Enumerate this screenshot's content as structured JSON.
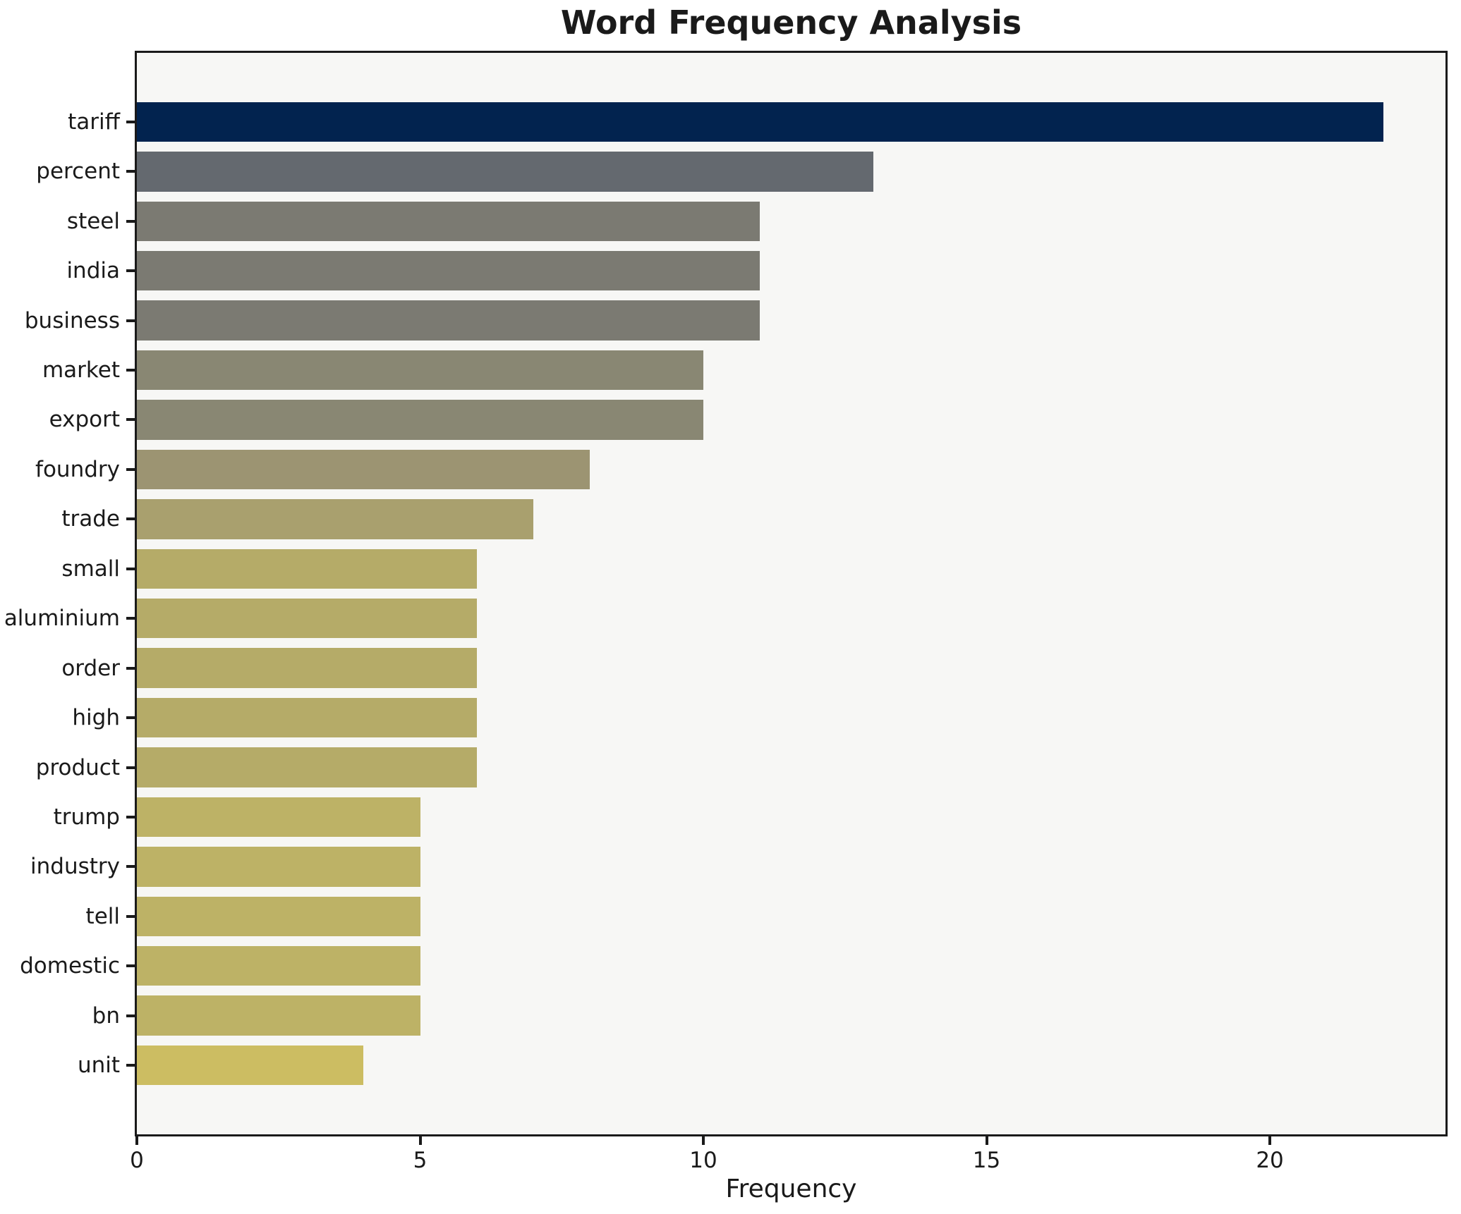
{
  "title": "Word Frequency Analysis",
  "xlabel": "Frequency",
  "colors": {
    "figure_bg": "#ffffff",
    "plot_bg": "#f7f7f5",
    "spine": "#1a1a1a",
    "text": "#1a1a1a"
  },
  "chart_data": {
    "type": "bar",
    "orientation": "horizontal",
    "title": "Word Frequency Analysis",
    "xlabel": "Frequency",
    "ylabel": "",
    "grid": false,
    "legend": null,
    "plot_bg": "#f7f7f5",
    "xlim": [
      0,
      23.1
    ],
    "x_ticks": [
      0,
      5,
      10,
      15,
      20
    ],
    "categories": [
      "tariff",
      "percent",
      "steel",
      "india",
      "business",
      "market",
      "export",
      "foundry",
      "trade",
      "small",
      "aluminium",
      "order",
      "high",
      "product",
      "trump",
      "industry",
      "tell",
      "domestic",
      "bn",
      "unit"
    ],
    "values": [
      22,
      13,
      11,
      11,
      11,
      10,
      10,
      8,
      7,
      6,
      6,
      6,
      6,
      6,
      5,
      5,
      5,
      5,
      5,
      4
    ],
    "bar_colors": [
      "#02234f",
      "#64696f",
      "#7b7a72",
      "#7b7a72",
      "#7b7a72",
      "#898773",
      "#898773",
      "#9c9472",
      "#a9a06e",
      "#b5ab68",
      "#b5ab68",
      "#b5ab68",
      "#b5ab68",
      "#b5ab68",
      "#bdb266",
      "#bdb266",
      "#bdb266",
      "#bdb266",
      "#bdb266",
      "#ccbd62"
    ],
    "colormap": "cividis (value-mapped, high=dark blue, low=khaki)"
  }
}
